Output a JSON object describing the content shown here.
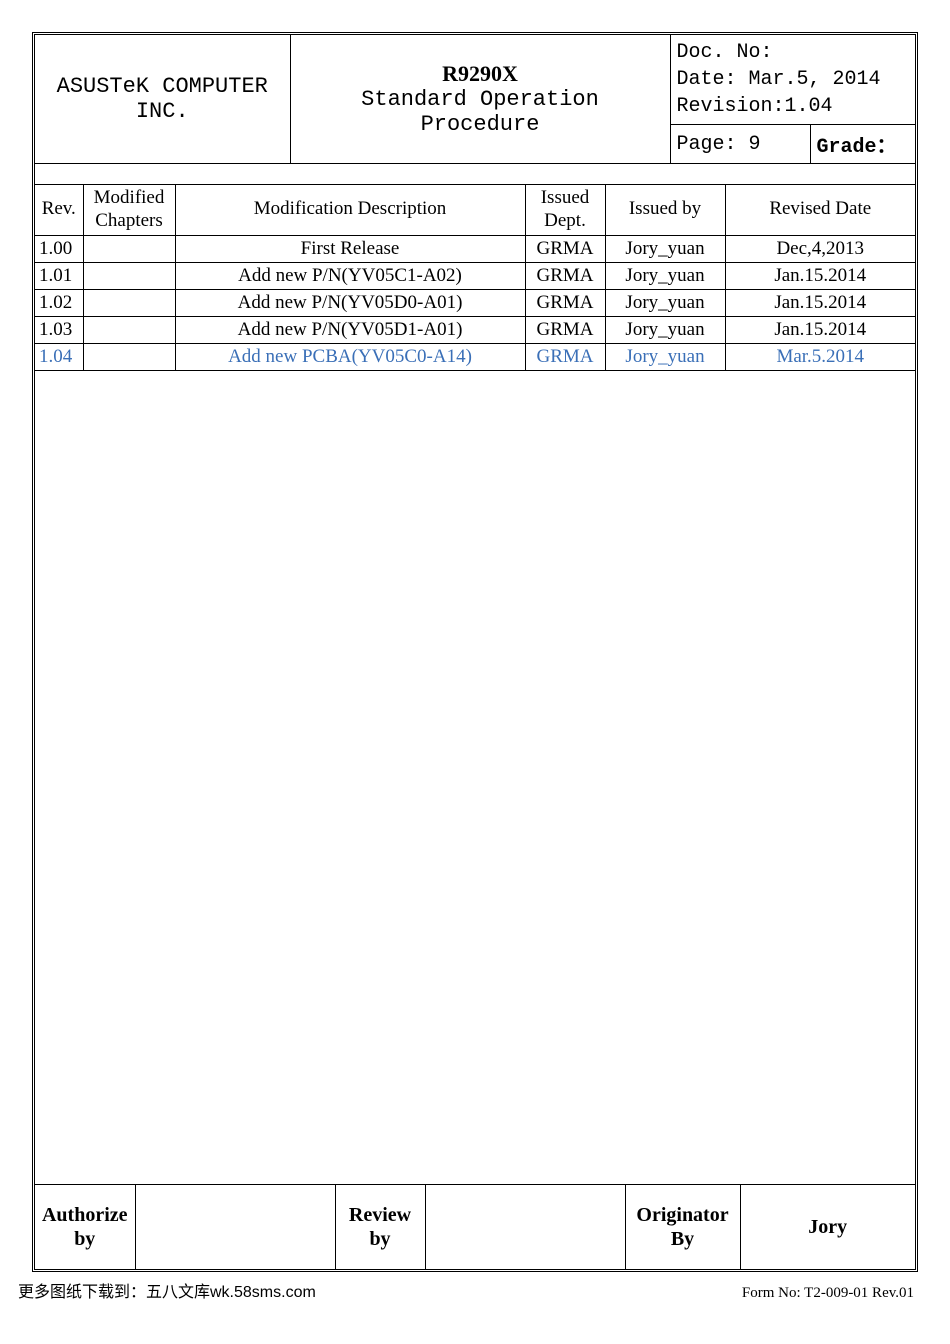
{
  "header": {
    "company_line1": "ASUSTeK COMPUTER",
    "company_line2": "INC.",
    "title_line1": "R9290X",
    "title_line2": "Standard Operation Procedure",
    "doc_no_label": "Doc. No:",
    "doc_no": "",
    "date_label": "Date:",
    "date": "Mar.5, 2014",
    "revision_label": "Revision:",
    "revision": "1.04",
    "page_label": "Page:",
    "page": "9",
    "grade_label": "Grade："
  },
  "rev_table": {
    "columns": {
      "rev": "Rev.",
      "modified_chapters_l1": "Modified",
      "modified_chapters_l2": "Chapters",
      "description": "Modification Description",
      "issued_dept_l1": "Issued",
      "issued_dept_l2": "Dept.",
      "issued_by": "Issued by",
      "revised_date": "Revised Date"
    },
    "rows": [
      {
        "rev": "1.00",
        "mod": "",
        "desc": "First Release",
        "dept": "GRMA",
        "by": "Jory_yuan",
        "date": "Dec,4,2013",
        "highlight": false
      },
      {
        "rev": "1.01",
        "mod": "",
        "desc": "Add new P/N(YV05C1-A02)",
        "dept": "GRMA",
        "by": "Jory_yuan",
        "date": "Jan.15.2014",
        "highlight": false
      },
      {
        "rev": "1.02",
        "mod": "",
        "desc": "Add new P/N(YV05D0-A01)",
        "dept": "GRMA",
        "by": "Jory_yuan",
        "date": "Jan.15.2014",
        "highlight": false
      },
      {
        "rev": "1.03",
        "mod": "",
        "desc": "Add new P/N(YV05D1-A01)",
        "dept": "GRMA",
        "by": "Jory_yuan",
        "date": "Jan.15.2014",
        "highlight": false
      },
      {
        "rev": "1.04",
        "mod": "",
        "desc": "Add new PCBA(YV05C0-A14)",
        "dept": "GRMA",
        "by": "Jory_yuan",
        "date": "Mar.5.2014",
        "highlight": true
      }
    ],
    "highlight_color": "#3a6fb7"
  },
  "signoff": {
    "authorize_label_l1": "Authorize",
    "authorize_label_l2": "by",
    "authorize_value": "",
    "review_label_l1": "Review",
    "review_label_l2": "by",
    "review_value": "",
    "originator_label_l1": "Originator",
    "originator_label_l2": "By",
    "originator_value": "Jory"
  },
  "footer": {
    "left": "更多图纸下载到：五八文库wk.58sms.com",
    "right": "Form  No:  T2-009-01  Rev.01"
  }
}
